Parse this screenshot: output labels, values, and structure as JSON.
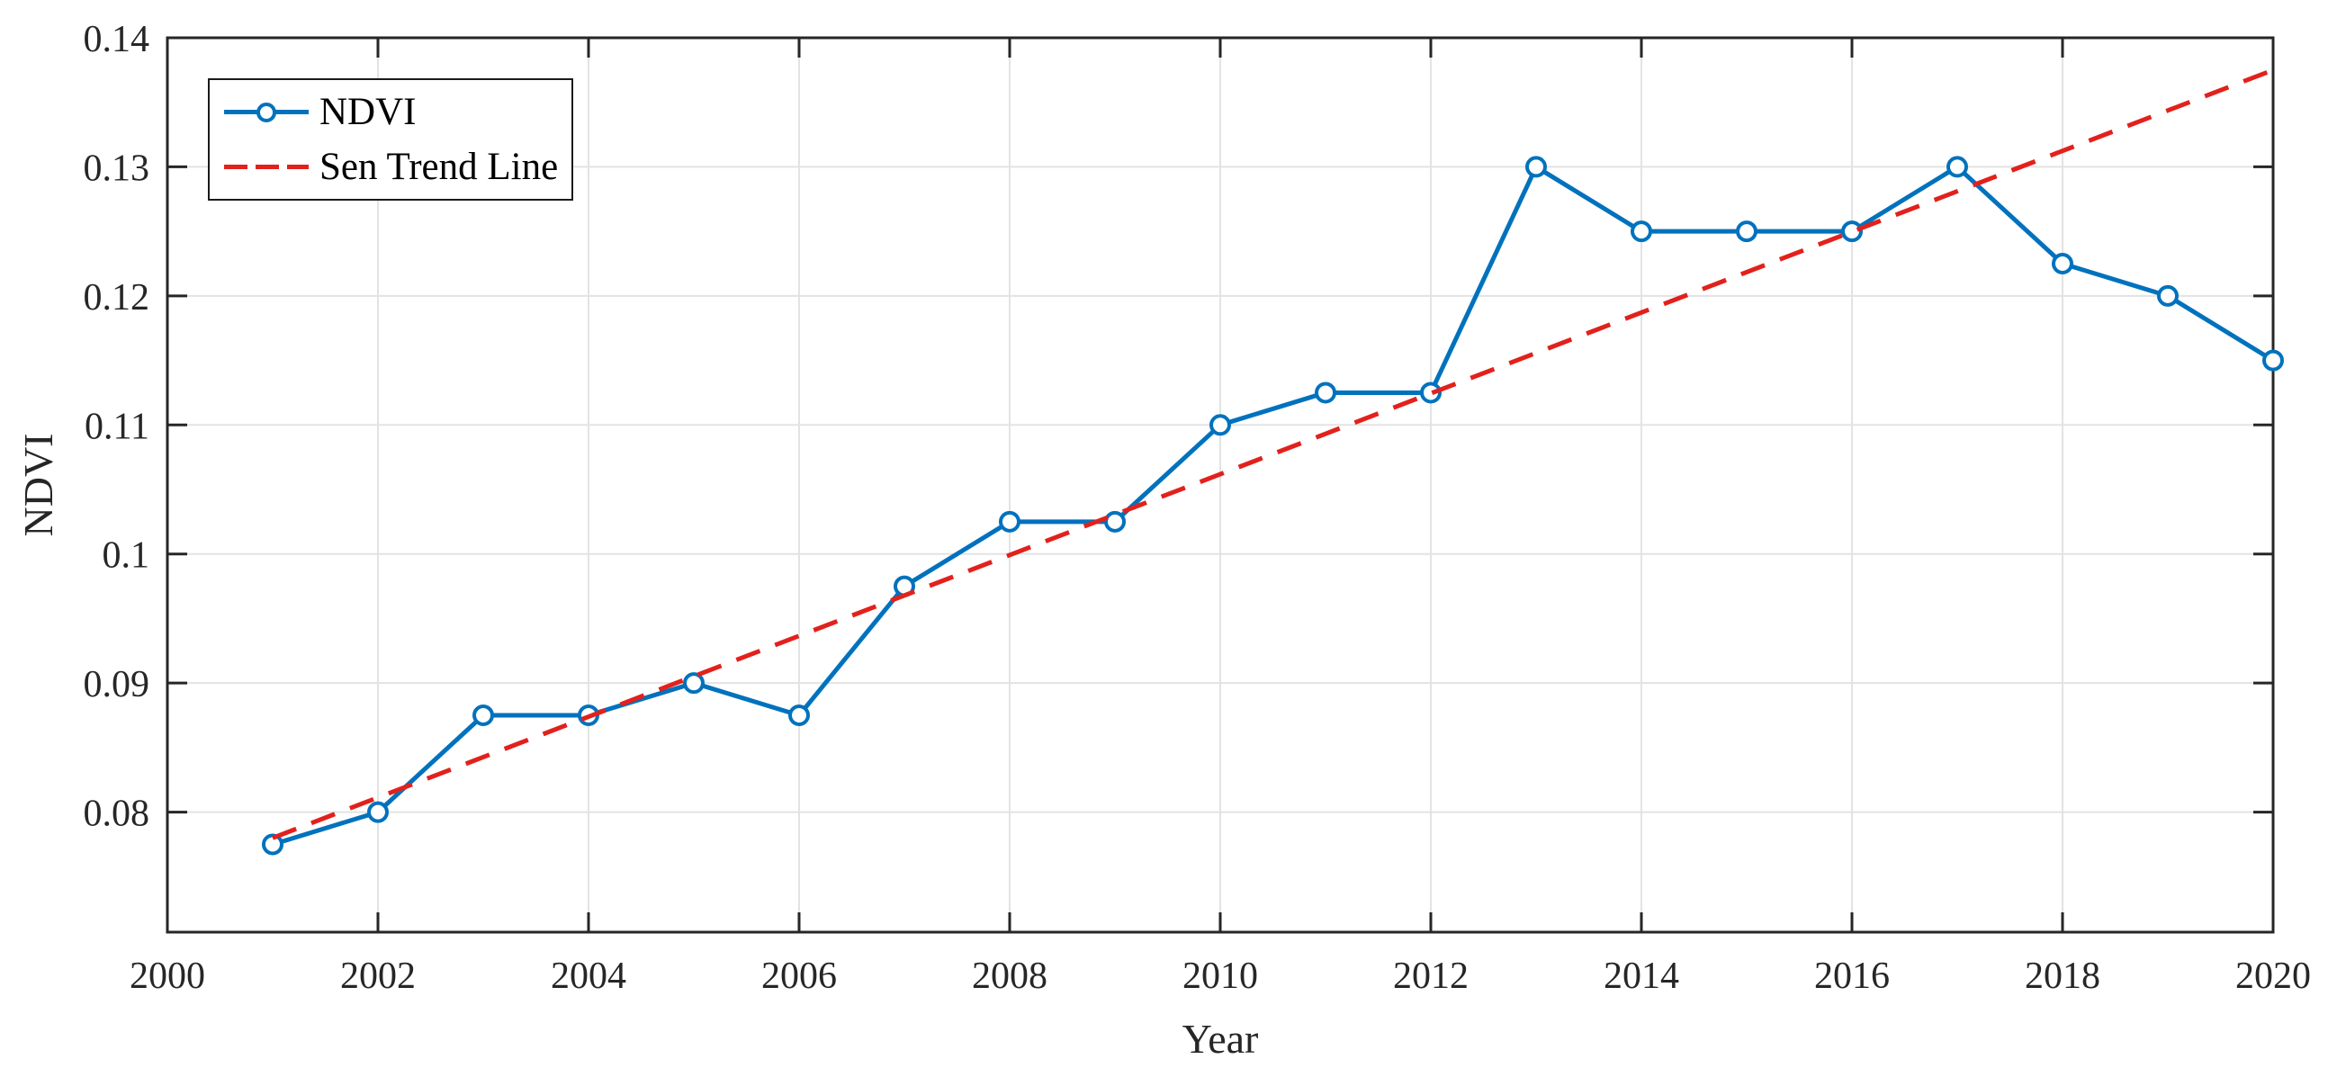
{
  "figure": {
    "background": "#FFFFFF",
    "axis_color": "#262626",
    "grid_color": "#E3E3E3",
    "legend_position": "top-left"
  },
  "chart_data": {
    "type": "line",
    "title": "",
    "xlabel": "Year",
    "ylabel": "NDVI",
    "xlim": [
      2000,
      2020
    ],
    "ylim": [
      0.0707,
      0.14
    ],
    "grid": true,
    "x_ticks": {
      "values": [
        2000,
        2002,
        2004,
        2006,
        2008,
        2010,
        2012,
        2014,
        2016,
        2018,
        2020
      ],
      "labels": [
        "2000",
        "2002",
        "2004",
        "2006",
        "2008",
        "2010",
        "2012",
        "2014",
        "2016",
        "2018",
        "2020"
      ]
    },
    "y_ticks": {
      "values": [
        0.08,
        0.09,
        0.1,
        0.11,
        0.12,
        0.13,
        0.14
      ],
      "labels": [
        "0.08",
        "0.09",
        "0.1",
        "0.11",
        "0.12",
        "0.13",
        "0.14"
      ]
    },
    "series": [
      {
        "name": "NDVI",
        "color": "#0072BD",
        "line_style": "solid",
        "marker": "circle",
        "x": [
          2001,
          2002,
          2003,
          2004,
          2005,
          2006,
          2007,
          2008,
          2009,
          2010,
          2011,
          2012,
          2013,
          2014,
          2015,
          2016,
          2017,
          2018,
          2019,
          2020
        ],
        "y": [
          0.0775,
          0.08,
          0.0875,
          0.0875,
          0.09,
          0.0875,
          0.0975,
          0.1025,
          0.1025,
          0.11,
          0.1125,
          0.1125,
          0.13,
          0.125,
          0.125,
          0.125,
          0.13,
          0.1225,
          0.12,
          0.115
        ]
      },
      {
        "name": "Sen Trend Line",
        "color": "#E2211C",
        "line_style": "dashed",
        "marker": "none",
        "x": [
          2001,
          2020
        ],
        "y": [
          0.078,
          0.1375
        ]
      }
    ]
  }
}
